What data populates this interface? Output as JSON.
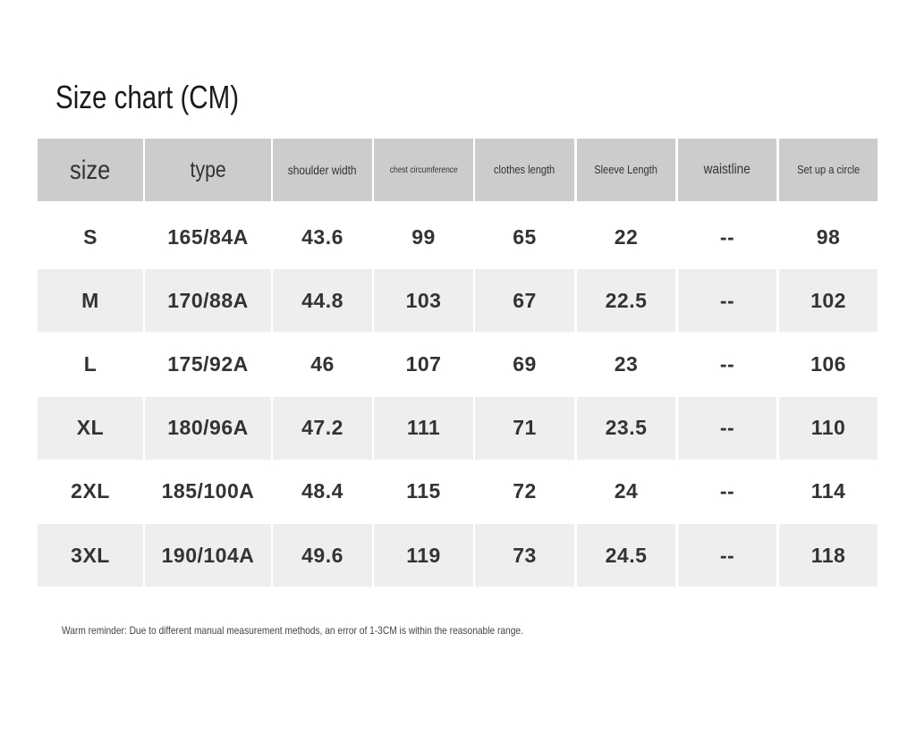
{
  "header": {
    "title": "Size chart (CM)"
  },
  "table": {
    "headers": [
      "size",
      "type",
      "shoulder width",
      "chest circumference",
      "clothes length",
      "Sleeve Length",
      "waistline",
      "Set up a circle"
    ],
    "rows": [
      [
        "S",
        "165/84A",
        "43.6",
        "99",
        "65",
        "22",
        "--",
        "98"
      ],
      [
        "M",
        "170/88A",
        "44.8",
        "103",
        "67",
        "22.5",
        "--",
        "102"
      ],
      [
        "L",
        "175/92A",
        "46",
        "107",
        "69",
        "23",
        "--",
        "106"
      ],
      [
        "XL",
        "180/96A",
        "47.2",
        "111",
        "71",
        "23.5",
        "--",
        "110"
      ],
      [
        "2XL",
        "185/100A",
        "48.4",
        "115",
        "72",
        "24",
        "--",
        "114"
      ],
      [
        "3XL",
        "190/104A",
        "49.6",
        "119",
        "73",
        "24.5",
        "--",
        "118"
      ]
    ]
  },
  "footer": {
    "note": "Warm reminder: Due to different manual measurement methods, an error of 1-3CM is within the reasonable range."
  }
}
